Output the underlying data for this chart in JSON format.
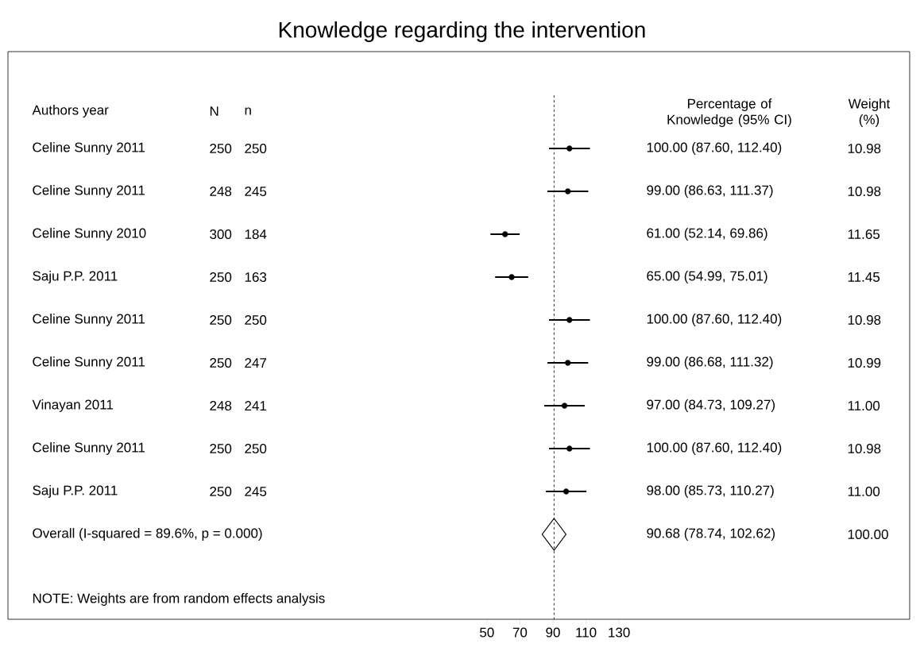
{
  "chart_data": {
    "type": "scatter",
    "orientation": "horizontal",
    "title": "Knowledge regarding the intervention",
    "ylabel": "Authors year",
    "categories": [
      "Celine Sunny 2011",
      "Celine Sunny 2011",
      "Celine Sunny 2010",
      "Saju P.P. 2011",
      "Celine Sunny 2011",
      "Celine Sunny 2011",
      "Vinayan 2011",
      "Celine Sunny 2011",
      "Saju P.P. 2011",
      "Overall  (I-squared = 89.6%, p = 0.000)"
    ],
    "series": [
      {
        "type": "scatter",
        "marker": "circle",
        "color": "#000000",
        "values": [
          100.0,
          99.0,
          61.0,
          65.0,
          100.0,
          99.0,
          97.0,
          100.0,
          98.0,
          null
        ],
        "errors": [
          [
            87.6,
            112.4
          ],
          [
            86.63,
            111.37
          ],
          [
            52.14,
            69.86
          ],
          [
            54.99,
            75.01
          ],
          [
            87.6,
            112.4
          ],
          [
            86.68,
            111.32
          ],
          [
            84.73,
            109.27
          ],
          [
            87.6,
            112.4
          ],
          [
            85.73,
            110.27
          ],
          null
        ]
      },
      {
        "type": "scatter",
        "marker": "diamond",
        "color": "#000000",
        "values": [
          null,
          null,
          null,
          null,
          null,
          null,
          null,
          null,
          null,
          90.68
        ]
      }
    ],
    "xlim": [
      -240,
      306
    ],
    "xticks": [
      50,
      70,
      90,
      110,
      130
    ],
    "ref_lines": [
      {
        "axis": "x",
        "value": 90.68,
        "line_style": "dashed"
      }
    ],
    "annotations": [
      "NOTE: Weights are from random effects analysis",
      "N",
      "n",
      "Percentage of Knowledge (95% CI)",
      "Weight (%)",
      "250",
      "250",
      "100.00 (87.60, 112.40)",
      "10.98",
      "248",
      "245",
      "99.00 (86.63, 111.37)",
      "10.98",
      "300",
      "184",
      "61.00 (52.14, 69.86)",
      "11.65",
      "250",
      "163",
      "65.00 (54.99, 75.01)",
      "11.45",
      "250",
      "250",
      "100.00 (87.60, 112.40)",
      "10.98",
      "250",
      "247",
      "99.00 (86.68, 111.32)",
      "10.99",
      "248",
      "241",
      "97.00 (84.73, 109.27)",
      "11.00",
      "250",
      "250",
      "100.00 (87.60, 112.40)",
      "10.98",
      "250",
      "245",
      "98.00 (85.73, 110.27)",
      "11.00",
      "90.68 (78.74, 102.62)",
      "100.00"
    ]
  }
}
